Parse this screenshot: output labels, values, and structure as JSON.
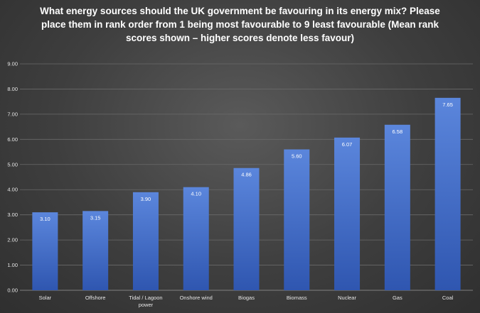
{
  "chart_data": {
    "type": "bar",
    "title": "What energy sources should the UK government be favouring in its energy mix? Please place them in rank order from 1 being most favourable to 9 least favourable (Mean rank scores shown – higher scores denote less favour)",
    "categories": [
      "Solar",
      "Offshore",
      "Tidal / Lagoon power",
      "Onshore wind",
      "Biogas",
      "Biomass",
      "Nuclear",
      "Gas",
      "Coal"
    ],
    "category_lines": [
      [
        "Solar"
      ],
      [
        "Offshore"
      ],
      [
        "Tidal / Lagoon",
        "power"
      ],
      [
        "Onshore wind"
      ],
      [
        "Biogas"
      ],
      [
        "Biomass"
      ],
      [
        "Nuclear"
      ],
      [
        "Gas"
      ],
      [
        "Coal"
      ]
    ],
    "values": [
      3.1,
      3.15,
      3.9,
      4.1,
      4.86,
      5.6,
      6.07,
      6.58,
      7.65
    ],
    "value_labels": [
      "3.10",
      "3.15",
      "3.90",
      "4.10",
      "4.86",
      "5.60",
      "6.07",
      "6.58",
      "7.65"
    ],
    "ylim": [
      0,
      9
    ],
    "yticks": [
      "0.00",
      "1.00",
      "2.00",
      "3.00",
      "4.00",
      "5.00",
      "6.00",
      "7.00",
      "8.00",
      "9.00"
    ],
    "grid": true,
    "bar_color_top": "#5b86dc",
    "bar_color_bottom": "#2f56b0",
    "xlabel": "",
    "ylabel": ""
  }
}
